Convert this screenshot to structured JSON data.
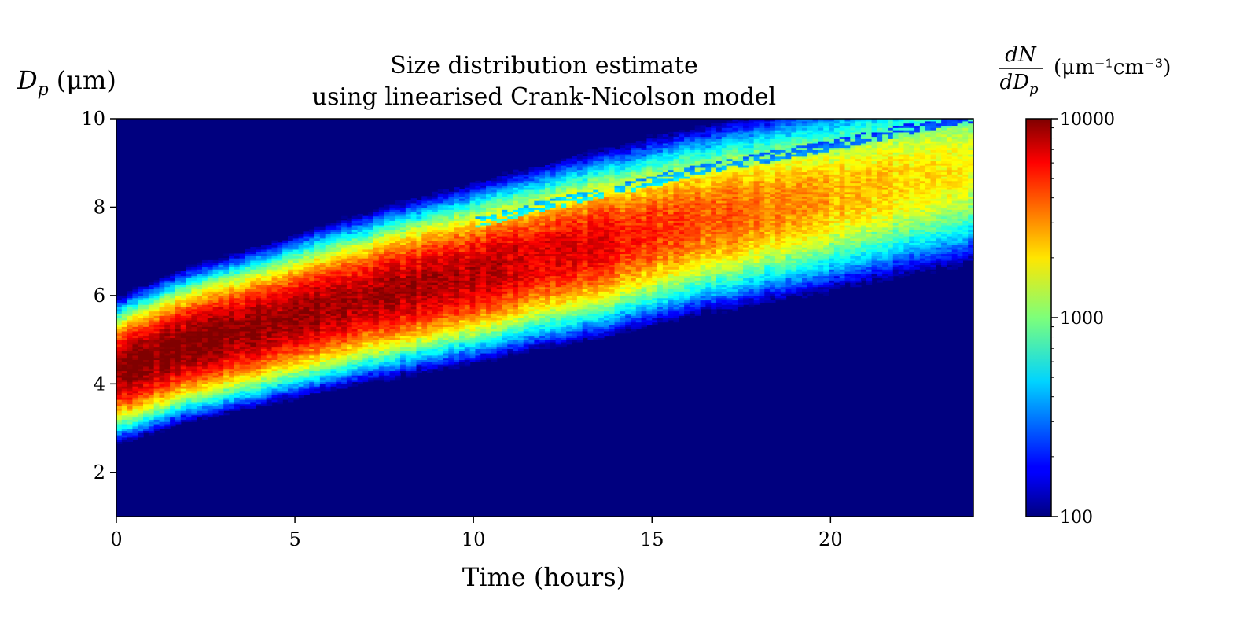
{
  "chart_data": {
    "type": "heatmap",
    "title": [
      "Size distribution estimate",
      "using linearised Crank-Nicolson model"
    ],
    "xlabel": "Time (hours)",
    "ylabel": {
      "main": "D",
      "sub": "p",
      "units": "(μm)"
    },
    "xlim": [
      0,
      24
    ],
    "ylim": [
      1,
      10
    ],
    "xticks": [
      0,
      5,
      10,
      15,
      20
    ],
    "yticks": [
      2,
      4,
      6,
      8,
      10
    ],
    "colorbar": {
      "label": {
        "numerator": "dN",
        "denominator": "dD",
        "denominator_sub": "p",
        "units": "(μm⁻¹cm⁻³)"
      },
      "scale": "log",
      "range": [
        100,
        10000
      ],
      "ticks": [
        "100",
        "1000",
        "10000"
      ],
      "colormap": "jet"
    },
    "ridge": {
      "time": [
        0,
        2,
        4,
        6,
        8,
        10,
        12,
        14,
        16,
        18,
        20,
        22,
        24
      ],
      "diameter": [
        4.3,
        4.9,
        5.3,
        5.75,
        6.15,
        6.5,
        6.9,
        7.25,
        7.65,
        7.95,
        8.25,
        8.6,
        8.9
      ],
      "peak_value": [
        9500,
        9000,
        8500,
        8000,
        7600,
        7000,
        6200,
        5000,
        3800,
        3000,
        2400,
        1900,
        1600
      ]
    },
    "background_value": 100
  }
}
